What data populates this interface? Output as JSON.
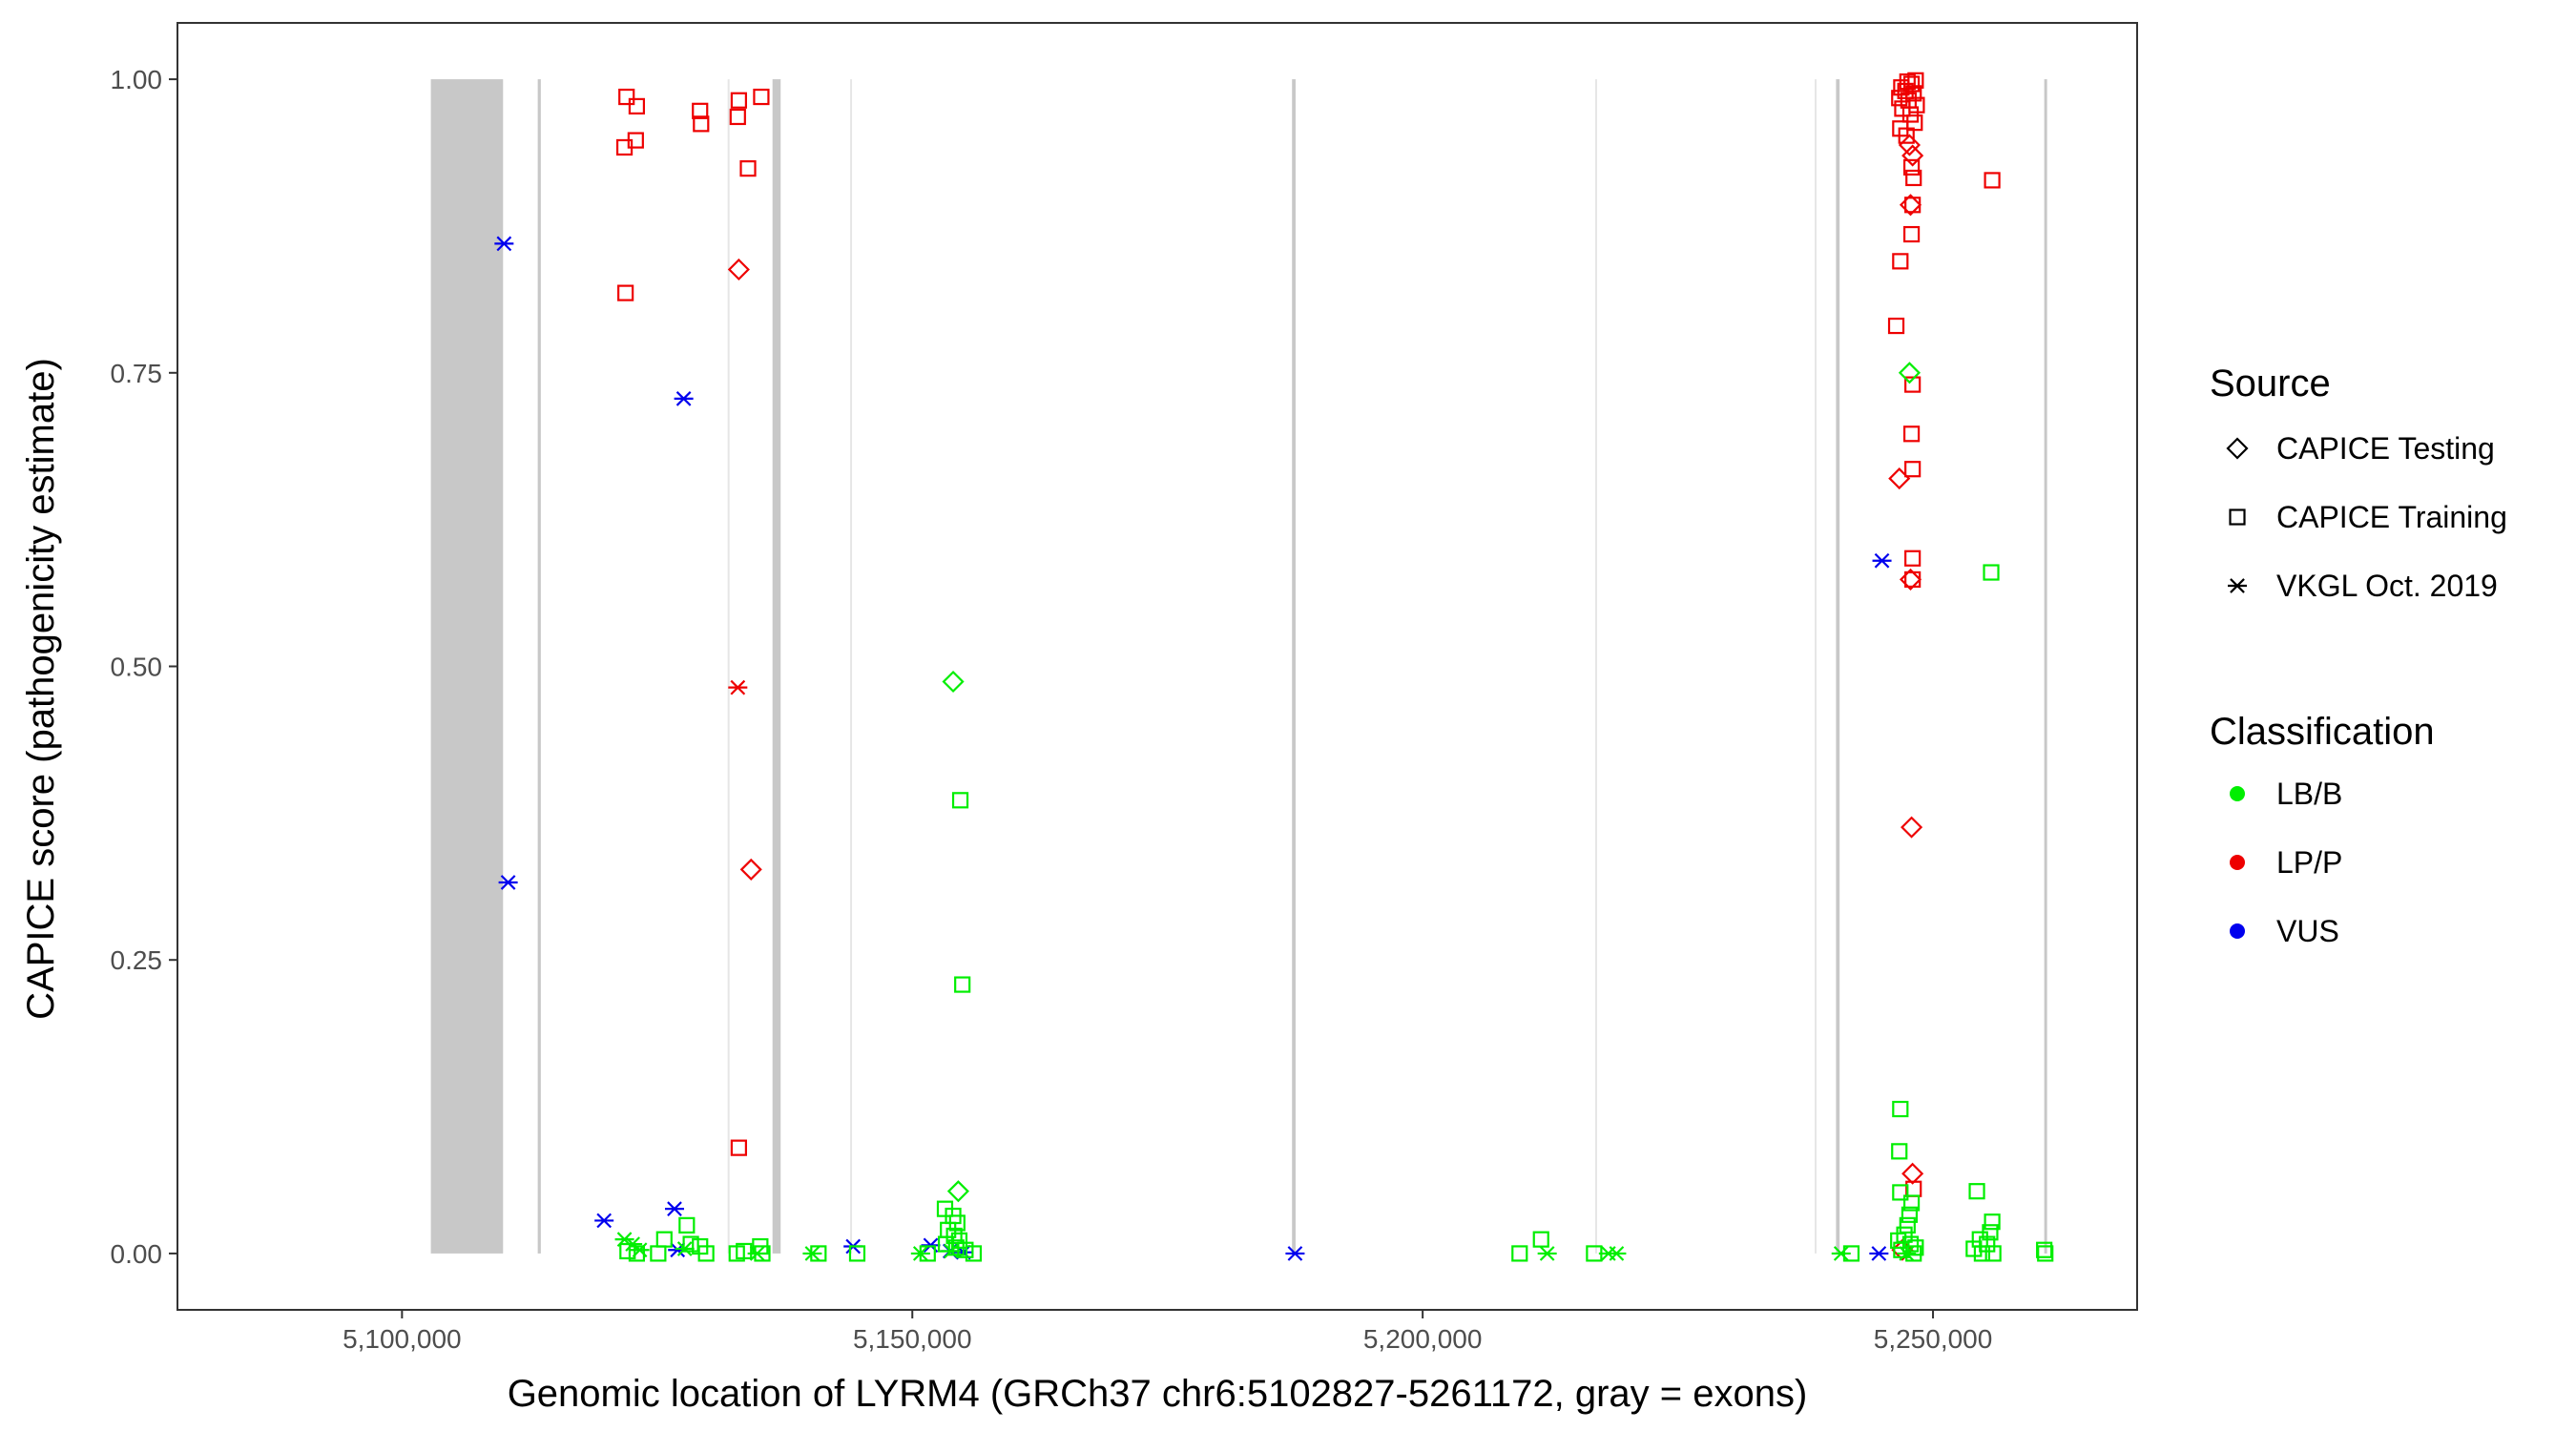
{
  "chart_data": {
    "type": "scatter",
    "title": "",
    "xlabel": "Genomic location of LYRM4 (GRCh37 chr6:5102827-5261172, gray = exons)",
    "ylabel": "CAPICE score (pathogenicity estimate)",
    "xlim": [
      5078000,
      5270000
    ],
    "ylim": [
      -0.048,
      1.048
    ],
    "x_ticks": [
      5100000,
      5150000,
      5200000,
      5250000
    ],
    "x_tick_labels": [
      "5,100,000",
      "5,150,000",
      "5,200,000",
      "5,250,000"
    ],
    "y_ticks": [
      0,
      0.25,
      0.5,
      0.75,
      1
    ],
    "y_tick_labels": [
      "0.00",
      "0.25",
      "0.50",
      "0.75",
      "1.00"
    ],
    "grid": false,
    "exons": [
      [
        5102827,
        5109900
      ],
      [
        5113300,
        5113600
      ],
      [
        5136300,
        5137100
      ],
      [
        5187200,
        5187550
      ],
      [
        5240500,
        5240850
      ],
      [
        5260900,
        5261172
      ]
    ],
    "light_lines": [
      5132000,
      5144000,
      5217000,
      5238500
    ],
    "legend_position": "right",
    "legend": {
      "source_title": "Source",
      "source_items": [
        {
          "shape": "diamond",
          "label": "CAPICE Testing"
        },
        {
          "shape": "square",
          "label": "CAPICE Training"
        },
        {
          "shape": "star",
          "label": "VKGL Oct. 2019"
        }
      ],
      "class_title": "Classification",
      "class_items": [
        {
          "key": "LB/B",
          "label": "LB/B"
        },
        {
          "key": "LP/P",
          "label": "LP/P"
        },
        {
          "key": "VUS",
          "label": "VUS"
        }
      ]
    },
    "colors": {
      "LB/B": "#00ee00",
      "LP/P": "#ee0000",
      "VUS": "#0000ee",
      "exon": "#c8c8c8",
      "line": "#e6e6e6"
    },
    "points": [
      {
        "x": 5122000,
        "y": 0.985,
        "s": "square",
        "c": "LP/P"
      },
      {
        "x": 5123000,
        "y": 0.977,
        "s": "square",
        "c": "LP/P"
      },
      {
        "x": 5122900,
        "y": 0.948,
        "s": "square",
        "c": "LP/P"
      },
      {
        "x": 5121800,
        "y": 0.942,
        "s": "square",
        "c": "LP/P"
      },
      {
        "x": 5121900,
        "y": 0.818,
        "s": "square",
        "c": "LP/P"
      },
      {
        "x": 5129200,
        "y": 0.973,
        "s": "square",
        "c": "LP/P"
      },
      {
        "x": 5129300,
        "y": 0.962,
        "s": "square",
        "c": "LP/P"
      },
      {
        "x": 5133000,
        "y": 0.982,
        "s": "square",
        "c": "LP/P"
      },
      {
        "x": 5132900,
        "y": 0.968,
        "s": "square",
        "c": "LP/P"
      },
      {
        "x": 5135200,
        "y": 0.985,
        "s": "square",
        "c": "LP/P"
      },
      {
        "x": 5133900,
        "y": 0.924,
        "s": "square",
        "c": "LP/P"
      },
      {
        "x": 5133000,
        "y": 0.838,
        "s": "diamond",
        "c": "LP/P"
      },
      {
        "x": 5132900,
        "y": 0.482,
        "s": "star",
        "c": "LP/P"
      },
      {
        "x": 5134200,
        "y": 0.327,
        "s": "diamond",
        "c": "LP/P"
      },
      {
        "x": 5133000,
        "y": 0.09,
        "s": "square",
        "c": "LP/P"
      },
      {
        "x": 5110000,
        "y": 0.86,
        "s": "star",
        "c": "VUS"
      },
      {
        "x": 5127600,
        "y": 0.728,
        "s": "star",
        "c": "VUS"
      },
      {
        "x": 5110400,
        "y": 0.316,
        "s": "star",
        "c": "VUS"
      },
      {
        "x": 5119800,
        "y": 0.028,
        "s": "star",
        "c": "VUS"
      },
      {
        "x": 5126700,
        "y": 0.038,
        "s": "star",
        "c": "VUS"
      },
      {
        "x": 5127000,
        "y": 0.003,
        "s": "star",
        "c": "VUS"
      },
      {
        "x": 5144200,
        "y": 0.006,
        "s": "star",
        "c": "VUS"
      },
      {
        "x": 5151800,
        "y": 0.007,
        "s": "star",
        "c": "VUS"
      },
      {
        "x": 5153700,
        "y": 0.002,
        "s": "star",
        "c": "VUS"
      },
      {
        "x": 5155000,
        "y": 0.001,
        "s": "star",
        "c": "VUS"
      },
      {
        "x": 5187500,
        "y": 0.0,
        "s": "star",
        "c": "VUS"
      },
      {
        "x": 5245000,
        "y": 0.59,
        "s": "star",
        "c": "VUS"
      },
      {
        "x": 5244700,
        "y": 0.0,
        "s": "star",
        "c": "VUS"
      },
      {
        "x": 5121800,
        "y": 0.012,
        "s": "star",
        "c": "LB/B"
      },
      {
        "x": 5122600,
        "y": 0.008,
        "s": "star",
        "c": "LB/B"
      },
      {
        "x": 5123300,
        "y": 0.003,
        "s": "star",
        "c": "LB/B"
      },
      {
        "x": 5122100,
        "y": 0.002,
        "s": "square",
        "c": "LB/B"
      },
      {
        "x": 5123000,
        "y": 0.0,
        "s": "square",
        "c": "LB/B"
      },
      {
        "x": 5125700,
        "y": 0.012,
        "s": "square",
        "c": "LB/B"
      },
      {
        "x": 5125100,
        "y": 0.0,
        "s": "square",
        "c": "LB/B"
      },
      {
        "x": 5127900,
        "y": 0.024,
        "s": "square",
        "c": "LB/B"
      },
      {
        "x": 5128300,
        "y": 0.008,
        "s": "square",
        "c": "LB/B"
      },
      {
        "x": 5129200,
        "y": 0.006,
        "s": "square",
        "c": "LB/B"
      },
      {
        "x": 5129800,
        "y": 0.0,
        "s": "square",
        "c": "LB/B"
      },
      {
        "x": 5127700,
        "y": 0.004,
        "s": "star",
        "c": "LB/B"
      },
      {
        "x": 5132800,
        "y": 0.0,
        "s": "square",
        "c": "LB/B"
      },
      {
        "x": 5133500,
        "y": 0.002,
        "s": "square",
        "c": "LB/B"
      },
      {
        "x": 5135100,
        "y": 0.006,
        "s": "square",
        "c": "LB/B"
      },
      {
        "x": 5135300,
        "y": 0.0,
        "s": "square",
        "c": "LB/B"
      },
      {
        "x": 5134800,
        "y": 0.0,
        "s": "star",
        "c": "LB/B"
      },
      {
        "x": 5140200,
        "y": 0.0,
        "s": "star",
        "c": "LB/B"
      },
      {
        "x": 5140800,
        "y": 0.0,
        "s": "square",
        "c": "LB/B"
      },
      {
        "x": 5144600,
        "y": 0.0,
        "s": "square",
        "c": "LB/B"
      },
      {
        "x": 5150800,
        "y": 0.0,
        "s": "star",
        "c": "LB/B"
      },
      {
        "x": 5151500,
        "y": 0.0,
        "s": "square",
        "c": "LB/B"
      },
      {
        "x": 5154000,
        "y": 0.487,
        "s": "diamond",
        "c": "LB/B"
      },
      {
        "x": 5154700,
        "y": 0.386,
        "s": "square",
        "c": "LB/B"
      },
      {
        "x": 5154900,
        "y": 0.229,
        "s": "square",
        "c": "LB/B"
      },
      {
        "x": 5154500,
        "y": 0.053,
        "s": "diamond",
        "c": "LB/B"
      },
      {
        "x": 5153200,
        "y": 0.038,
        "s": "square",
        "c": "LB/B"
      },
      {
        "x": 5154000,
        "y": 0.032,
        "s": "square",
        "c": "LB/B"
      },
      {
        "x": 5154400,
        "y": 0.026,
        "s": "square",
        "c": "LB/B"
      },
      {
        "x": 5153500,
        "y": 0.02,
        "s": "square",
        "c": "LB/B"
      },
      {
        "x": 5154100,
        "y": 0.015,
        "s": "square",
        "c": "LB/B"
      },
      {
        "x": 5154600,
        "y": 0.011,
        "s": "square",
        "c": "LB/B"
      },
      {
        "x": 5153300,
        "y": 0.008,
        "s": "square",
        "c": "LB/B"
      },
      {
        "x": 5154300,
        "y": 0.005,
        "s": "square",
        "c": "LB/B"
      },
      {
        "x": 5155200,
        "y": 0.003,
        "s": "square",
        "c": "LB/B"
      },
      {
        "x": 5153800,
        "y": 0.002,
        "s": "star",
        "c": "LB/B"
      },
      {
        "x": 5156000,
        "y": 0.0,
        "s": "square",
        "c": "LB/B"
      },
      {
        "x": 5209500,
        "y": 0.0,
        "s": "square",
        "c": "LB/B"
      },
      {
        "x": 5211600,
        "y": 0.012,
        "s": "square",
        "c": "LB/B"
      },
      {
        "x": 5212200,
        "y": 0.0,
        "s": "star",
        "c": "LB/B"
      },
      {
        "x": 5216800,
        "y": 0.0,
        "s": "square",
        "c": "LB/B"
      },
      {
        "x": 5218200,
        "y": 0.0,
        "s": "star",
        "c": "LB/B"
      },
      {
        "x": 5219000,
        "y": 0.0,
        "s": "star",
        "c": "LB/B"
      },
      {
        "x": 5241000,
        "y": 0.0,
        "s": "star",
        "c": "LB/B"
      },
      {
        "x": 5242000,
        "y": 0.0,
        "s": "square",
        "c": "LB/B"
      },
      {
        "x": 5247500,
        "y": 0.998,
        "s": "square",
        "c": "LP/P"
      },
      {
        "x": 5247900,
        "y": 0.996,
        "s": "square",
        "c": "LP/P"
      },
      {
        "x": 5248300,
        "y": 0.999,
        "s": "square",
        "c": "LP/P"
      },
      {
        "x": 5246900,
        "y": 0.993,
        "s": "square",
        "c": "LP/P"
      },
      {
        "x": 5247300,
        "y": 0.99,
        "s": "square",
        "c": "LP/P"
      },
      {
        "x": 5248100,
        "y": 0.988,
        "s": "square",
        "c": "LP/P"
      },
      {
        "x": 5246700,
        "y": 0.984,
        "s": "square",
        "c": "LP/P"
      },
      {
        "x": 5247600,
        "y": 0.982,
        "s": "square",
        "c": "LP/P"
      },
      {
        "x": 5248400,
        "y": 0.978,
        "s": "square",
        "c": "LP/P"
      },
      {
        "x": 5247000,
        "y": 0.975,
        "s": "square",
        "c": "LP/P"
      },
      {
        "x": 5247800,
        "y": 0.97,
        "s": "square",
        "c": "LP/P"
      },
      {
        "x": 5248200,
        "y": 0.963,
        "s": "square",
        "c": "LP/P"
      },
      {
        "x": 5246800,
        "y": 0.958,
        "s": "square",
        "c": "LP/P"
      },
      {
        "x": 5247400,
        "y": 0.952,
        "s": "square",
        "c": "LP/P"
      },
      {
        "x": 5247700,
        "y": 0.944,
        "s": "diamond",
        "c": "LP/P"
      },
      {
        "x": 5248000,
        "y": 0.935,
        "s": "diamond",
        "c": "LP/P"
      },
      {
        "x": 5247900,
        "y": 0.925,
        "s": "square",
        "c": "LP/P"
      },
      {
        "x": 5248100,
        "y": 0.916,
        "s": "square",
        "c": "LP/P"
      },
      {
        "x": 5247800,
        "y": 0.893,
        "s": "diamond",
        "c": "LP/P"
      },
      {
        "x": 5248000,
        "y": 0.893,
        "s": "square",
        "c": "LP/P"
      },
      {
        "x": 5247900,
        "y": 0.868,
        "s": "square",
        "c": "LP/P"
      },
      {
        "x": 5246800,
        "y": 0.845,
        "s": "square",
        "c": "LP/P"
      },
      {
        "x": 5246400,
        "y": 0.79,
        "s": "square",
        "c": "LP/P"
      },
      {
        "x": 5248000,
        "y": 0.74,
        "s": "square",
        "c": "LP/P"
      },
      {
        "x": 5247900,
        "y": 0.698,
        "s": "square",
        "c": "LP/P"
      },
      {
        "x": 5248000,
        "y": 0.668,
        "s": "square",
        "c": "LP/P"
      },
      {
        "x": 5246700,
        "y": 0.66,
        "s": "diamond",
        "c": "LP/P"
      },
      {
        "x": 5248000,
        "y": 0.592,
        "s": "square",
        "c": "LP/P"
      },
      {
        "x": 5247800,
        "y": 0.574,
        "s": "diamond",
        "c": "LP/P"
      },
      {
        "x": 5248000,
        "y": 0.574,
        "s": "square",
        "c": "LP/P"
      },
      {
        "x": 5247900,
        "y": 0.363,
        "s": "diamond",
        "c": "LP/P"
      },
      {
        "x": 5248000,
        "y": 0.068,
        "s": "diamond",
        "c": "LP/P"
      },
      {
        "x": 5248100,
        "y": 0.055,
        "s": "square",
        "c": "LP/P"
      },
      {
        "x": 5247000,
        "y": 0.003,
        "s": "diamond",
        "c": "LP/P"
      },
      {
        "x": 5255800,
        "y": 0.914,
        "s": "square",
        "c": "LP/P"
      },
      {
        "x": 5247700,
        "y": 0.75,
        "s": "diamond",
        "c": "LB/B"
      },
      {
        "x": 5246800,
        "y": 0.123,
        "s": "square",
        "c": "LB/B"
      },
      {
        "x": 5246700,
        "y": 0.087,
        "s": "square",
        "c": "LB/B"
      },
      {
        "x": 5246800,
        "y": 0.052,
        "s": "square",
        "c": "LB/B"
      },
      {
        "x": 5247900,
        "y": 0.043,
        "s": "square",
        "c": "LB/B"
      },
      {
        "x": 5247700,
        "y": 0.033,
        "s": "square",
        "c": "LB/B"
      },
      {
        "x": 5247500,
        "y": 0.024,
        "s": "square",
        "c": "LB/B"
      },
      {
        "x": 5247200,
        "y": 0.016,
        "s": "square",
        "c": "LB/B"
      },
      {
        "x": 5246600,
        "y": 0.011,
        "s": "square",
        "c": "LB/B"
      },
      {
        "x": 5247800,
        "y": 0.008,
        "s": "square",
        "c": "LB/B"
      },
      {
        "x": 5248300,
        "y": 0.005,
        "s": "square",
        "c": "LB/B"
      },
      {
        "x": 5246900,
        "y": 0.003,
        "s": "square",
        "c": "LB/B"
      },
      {
        "x": 5247400,
        "y": 0.0,
        "s": "star",
        "c": "LB/B"
      },
      {
        "x": 5248100,
        "y": 0.0,
        "s": "square",
        "c": "LB/B"
      },
      {
        "x": 5255700,
        "y": 0.58,
        "s": "square",
        "c": "LB/B"
      },
      {
        "x": 5254300,
        "y": 0.053,
        "s": "square",
        "c": "LB/B"
      },
      {
        "x": 5255800,
        "y": 0.027,
        "s": "square",
        "c": "LB/B"
      },
      {
        "x": 5255600,
        "y": 0.018,
        "s": "square",
        "c": "LB/B"
      },
      {
        "x": 5254600,
        "y": 0.012,
        "s": "square",
        "c": "LB/B"
      },
      {
        "x": 5255300,
        "y": 0.008,
        "s": "square",
        "c": "LB/B"
      },
      {
        "x": 5254000,
        "y": 0.004,
        "s": "square",
        "c": "LB/B"
      },
      {
        "x": 5254800,
        "y": 0.0,
        "s": "square",
        "c": "LB/B"
      },
      {
        "x": 5255900,
        "y": 0.0,
        "s": "square",
        "c": "LB/B"
      },
      {
        "x": 5260900,
        "y": 0.003,
        "s": "square",
        "c": "LB/B"
      },
      {
        "x": 5261000,
        "y": 0.0,
        "s": "square",
        "c": "LB/B"
      }
    ]
  }
}
